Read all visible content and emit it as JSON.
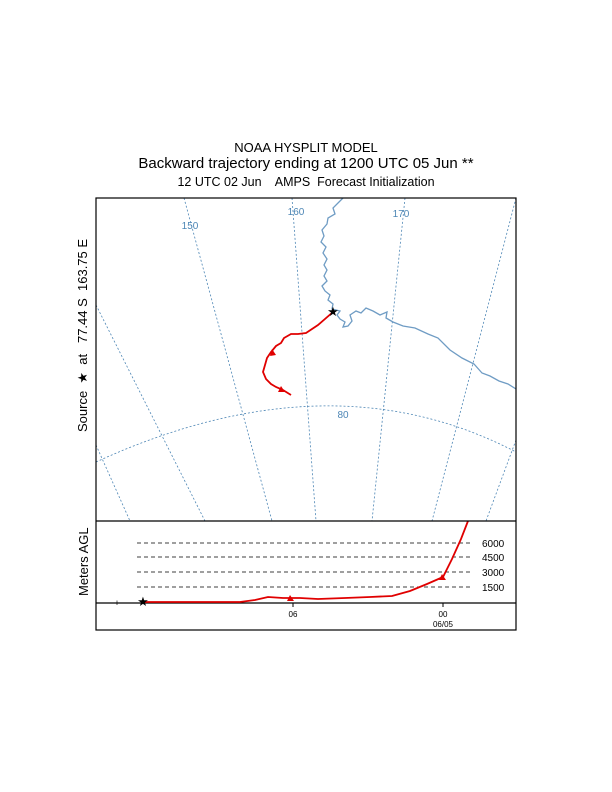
{
  "header": {
    "line1": "NOAA HYSPLIT MODEL",
    "line2": "Backward trajectory ending at 1200 UTC 05 Jun **",
    "line3": "12 UTC 02 Jun    AMPS  Forecast Initialization"
  },
  "source": {
    "label": "Source  ★  at   77.44 S  163.75 E"
  },
  "map": {
    "meridian_labels": [
      "150",
      "160",
      "170"
    ],
    "latitude_label": "80",
    "graticule_color": "#4d86b5",
    "coast_color": "#6f9cc4"
  },
  "trajectory": {
    "color": "#e00000",
    "start_symbol": "star"
  },
  "vertical": {
    "ylabel": "Meters AGL",
    "levels": [
      "6000",
      "4500",
      "3000",
      "1500"
    ],
    "time_ticks": [
      "06",
      "00"
    ],
    "date_label": "06/05",
    "left_marker": "+"
  }
}
